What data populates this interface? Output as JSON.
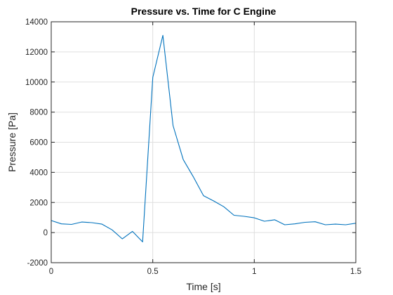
{
  "chart_data": {
    "type": "line",
    "title": "Pressure vs. Time for C Engine",
    "xlabel": "Time [s]",
    "ylabel": "Pressure [Pa]",
    "xlim": [
      0,
      1.5
    ],
    "ylim": [
      -2000,
      14000
    ],
    "xticks": [
      0,
      0.5,
      1,
      1.5
    ],
    "xtick_labels": [
      "0",
      "0.5",
      "1",
      "1.5"
    ],
    "yticks": [
      -2000,
      0,
      2000,
      4000,
      6000,
      8000,
      10000,
      12000,
      14000
    ],
    "ytick_labels": [
      "-2000",
      "0",
      "2000",
      "4000",
      "6000",
      "8000",
      "10000",
      "12000",
      "14000"
    ],
    "grid": true,
    "line_color": "#0072BD",
    "series": [
      {
        "x": [
          0,
          0.05,
          0.1,
          0.15,
          0.2,
          0.25,
          0.3,
          0.35,
          0.4,
          0.45,
          0.5,
          0.55,
          0.6,
          0.65,
          0.7,
          0.75,
          0.8,
          0.85,
          0.9,
          0.95,
          1.0,
          1.05,
          1.1,
          1.15,
          1.2,
          1.25,
          1.3,
          1.35,
          1.4,
          1.45,
          1.5
        ],
        "y": [
          800,
          580,
          540,
          700,
          660,
          560,
          180,
          -420,
          80,
          -620,
          10300,
          13100,
          7100,
          4850,
          3700,
          2450,
          2100,
          1720,
          1150,
          1080,
          980,
          750,
          850,
          520,
          580,
          680,
          720,
          520,
          560,
          520,
          620
        ]
      }
    ]
  }
}
